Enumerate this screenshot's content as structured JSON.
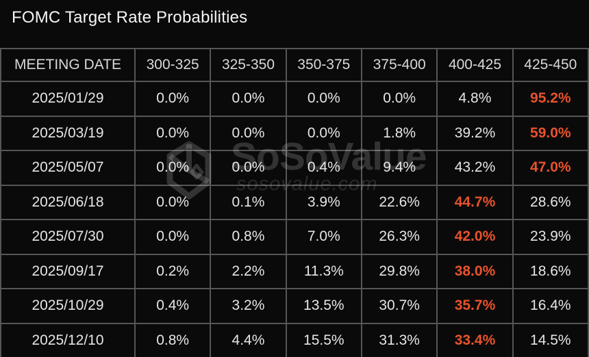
{
  "title": "FOMC Target Rate Probabilities",
  "colors": {
    "background": "#0a0a0a",
    "border": "#565656",
    "text": "#e6e6e6",
    "header_text": "#d9d9d9",
    "title_text": "#f5f5f5",
    "accent": "#e8522d"
  },
  "watermark": {
    "logo_icon": "cube-logo-icon",
    "brand": "SoSoValue",
    "domain": "sosovalue.com"
  },
  "chart_data": {
    "type": "table",
    "title": "FOMC Target Rate Probabilities",
    "columns": [
      "MEETING DATE",
      "300-325",
      "325-350",
      "350-375",
      "375-400",
      "400-425",
      "425-450"
    ],
    "rows": [
      {
        "date": "2025/01/29",
        "values": [
          "0.0%",
          "0.0%",
          "0.0%",
          "0.0%",
          "4.8%",
          "95.2%"
        ],
        "highlight_index": 5
      },
      {
        "date": "2025/03/19",
        "values": [
          "0.0%",
          "0.0%",
          "0.0%",
          "1.8%",
          "39.2%",
          "59.0%"
        ],
        "highlight_index": 5
      },
      {
        "date": "2025/05/07",
        "values": [
          "0.0%",
          "0.0%",
          "0.4%",
          "9.4%",
          "43.2%",
          "47.0%"
        ],
        "highlight_index": 5
      },
      {
        "date": "2025/06/18",
        "values": [
          "0.0%",
          "0.1%",
          "3.9%",
          "22.6%",
          "44.7%",
          "28.6%"
        ],
        "highlight_index": 4
      },
      {
        "date": "2025/07/30",
        "values": [
          "0.0%",
          "0.8%",
          "7.0%",
          "26.3%",
          "42.0%",
          "23.9%"
        ],
        "highlight_index": 4
      },
      {
        "date": "2025/09/17",
        "values": [
          "0.2%",
          "2.2%",
          "11.3%",
          "29.8%",
          "38.0%",
          "18.6%"
        ],
        "highlight_index": 4
      },
      {
        "date": "2025/10/29",
        "values": [
          "0.4%",
          "3.2%",
          "13.5%",
          "30.7%",
          "35.7%",
          "16.4%"
        ],
        "highlight_index": 4
      },
      {
        "date": "2025/12/10",
        "values": [
          "0.8%",
          "4.4%",
          "15.5%",
          "31.3%",
          "33.4%",
          "14.5%"
        ],
        "highlight_index": 4
      }
    ]
  }
}
